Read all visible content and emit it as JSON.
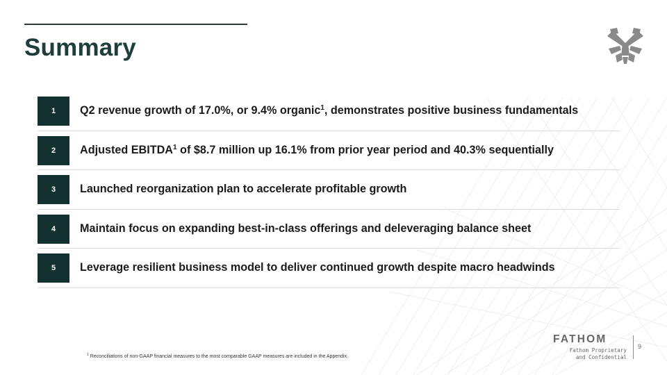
{
  "slide": {
    "title": "Summary",
    "items": [
      {
        "number": "1",
        "text_before": "Q2 revenue growth of 17.0%, or 9.4% organic",
        "sup": "1",
        "text_after": ", demonstrates positive business fundamentals"
      },
      {
        "number": "2",
        "text_before": "Adjusted EBITDA",
        "sup": "1",
        "text_after": " of $8.7 million up 16.1% from prior year period and 40.3% sequentially"
      },
      {
        "number": "3",
        "text_before": "Launched reorganization plan to accelerate profitable growth",
        "sup": "",
        "text_after": ""
      },
      {
        "number": "4",
        "text_before": "Maintain focus on expanding best-in-class offerings and deleveraging balance sheet",
        "sup": "",
        "text_after": ""
      },
      {
        "number": "5",
        "text_before": "Leverage resilient business model to deliver continued growth despite macro headwinds",
        "sup": "",
        "text_after": ""
      }
    ],
    "footnote": {
      "marker": "1",
      "text": " Reconciliations of non-GAAP financial measures to the most comparable GAAP measures are included in the Appendix."
    }
  },
  "footer": {
    "brand": "FATHOM",
    "proprietary_line1": "Fathom Proprietary",
    "proprietary_line2": "and Confidential",
    "page_number": "9"
  },
  "icons": {
    "logo": "fathom-crossed-tools-logo-icon"
  },
  "colors": {
    "title": "#1e3d3b",
    "badge": "#13312f",
    "body_text": "#1b1b1b",
    "divider": "#dcdcdc",
    "footer_gray": "#666666"
  }
}
